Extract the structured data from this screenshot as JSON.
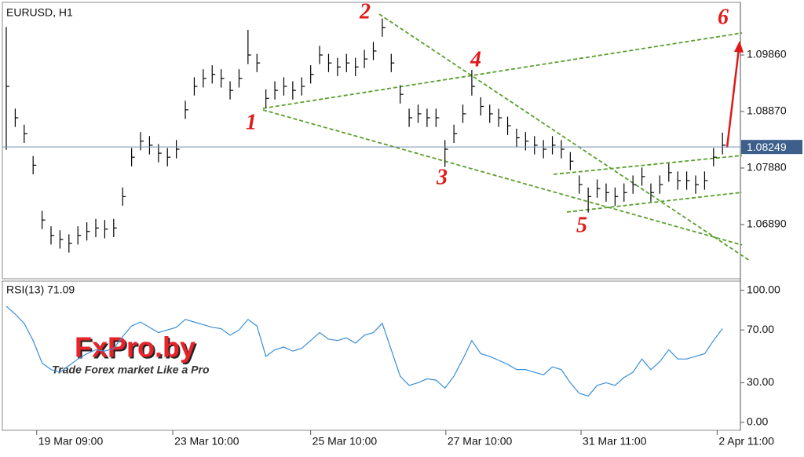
{
  "chart_data": [
    {
      "type": "ohlc",
      "title": "EURUSD, H1",
      "color": "#000000",
      "high": [
        1.1035,
        1.0892,
        1.0864,
        1.0809,
        1.0713,
        1.0686,
        1.0679,
        1.0672,
        1.0686,
        1.0693,
        1.0699,
        1.0697,
        1.0699,
        1.0754,
        1.0823,
        1.0851,
        1.0844,
        1.083,
        1.0823,
        1.0837,
        1.0906,
        1.0947,
        1.0961,
        1.0968,
        1.0961,
        1.094,
        1.0961,
        1.103,
        1.0988,
        1.0926,
        1.094,
        1.0947,
        1.094,
        1.0947,
        1.0968,
        1.1002,
        1.0988,
        1.0981,
        1.0988,
        1.0981,
        1.0995,
        1.1009,
        1.105,
        1.0988,
        1.0933,
        1.0892,
        1.0899,
        1.0892,
        1.0892,
        1.0837,
        1.0864,
        1.0899,
        1.096,
        1.0912,
        1.0899,
        1.0892,
        1.0878,
        1.0857,
        1.0851,
        1.0844,
        1.0837,
        1.0844,
        1.0837,
        1.0816,
        1.0775,
        1.0754,
        1.0768,
        1.0761,
        1.0754,
        1.0761,
        1.0775,
        1.0789,
        1.0761,
        1.0775,
        1.0796,
        1.0782,
        1.0782,
        1.0775,
        1.0782,
        1.0823,
        1.085
      ],
      "low": [
        1.082,
        1.086,
        1.0832,
        1.0777,
        1.0681,
        1.0654,
        1.0647,
        1.064,
        1.0654,
        1.0661,
        1.0667,
        1.0665,
        1.0667,
        1.0722,
        1.0791,
        1.0819,
        1.0812,
        1.0798,
        1.0791,
        1.0805,
        1.0874,
        1.0915,
        1.0929,
        1.0936,
        1.0929,
        1.0908,
        1.0929,
        1.097,
        1.0956,
        1.0894,
        1.0908,
        1.0915,
        1.0908,
        1.0915,
        1.0936,
        1.097,
        1.0956,
        1.0949,
        1.0956,
        1.0949,
        1.0963,
        1.0977,
        1.1018,
        1.0956,
        1.0901,
        1.086,
        1.0867,
        1.086,
        1.086,
        1.079,
        1.0832,
        1.0867,
        1.0915,
        1.088,
        1.0867,
        1.086,
        1.0846,
        1.0825,
        1.0819,
        1.0812,
        1.0805,
        1.0812,
        1.0805,
        1.0784,
        1.0743,
        1.071,
        1.0736,
        1.0729,
        1.0722,
        1.0729,
        1.0743,
        1.0757,
        1.0729,
        1.0743,
        1.0764,
        1.075,
        1.075,
        1.0743,
        1.075,
        1.0791,
        1.0812
      ],
      "close": [
        1.0931,
        1.0876,
        1.0848,
        1.0793,
        1.0697,
        1.067,
        1.0663,
        1.0656,
        1.067,
        1.0677,
        1.0683,
        1.0681,
        1.0683,
        1.0738,
        1.0807,
        1.0835,
        1.0828,
        1.0814,
        1.0807,
        1.0821,
        1.089,
        1.0931,
        1.0945,
        1.0952,
        1.0945,
        1.0924,
        1.0945,
        1.0986,
        1.0972,
        1.091,
        1.0924,
        1.0931,
        1.0924,
        1.0931,
        1.0952,
        1.0986,
        1.0972,
        1.0965,
        1.0972,
        1.0965,
        1.0979,
        1.0993,
        1.1034,
        1.0972,
        1.0917,
        1.0876,
        1.0883,
        1.0876,
        1.0876,
        1.0821,
        1.0848,
        1.0883,
        1.0931,
        1.0896,
        1.0883,
        1.0876,
        1.0862,
        1.0841,
        1.0835,
        1.0828,
        1.0821,
        1.0828,
        1.0821,
        1.08,
        1.0759,
        1.0738,
        1.0752,
        1.0745,
        1.0738,
        1.0745,
        1.0759,
        1.0773,
        1.0745,
        1.0759,
        1.078,
        1.0766,
        1.0766,
        1.0759,
        1.0766,
        1.0807,
        1.0828
      ],
      "xlim": [
        -0.7,
        82
      ],
      "xticks": [
        {
          "value": 3.4,
          "label": "19 Mar 09:00"
        },
        {
          "value": 18.6,
          "label": "23 Mar 10:00"
        },
        {
          "value": 34,
          "label": "25 Mar 10:00"
        },
        {
          "value": 49.1,
          "label": "27 Mar 10:00"
        },
        {
          "value": 64.2,
          "label": "31 Mar 11:00"
        },
        {
          "value": 79.4,
          "label": "2 Apr 11:00"
        }
      ],
      "ylim": [
        1.05941,
        1.10823
      ],
      "yticks": [
        {
          "value": 1.0986,
          "label": "1.09860"
        },
        {
          "value": 1.0887,
          "label": "1.08870"
        },
        {
          "value": 1.0788,
          "label": "1.07880"
        },
        {
          "value": 1.0689,
          "label": "1.06890"
        }
      ],
      "last_price": 1.08249,
      "wave_labels": [
        "1",
        "2",
        "3",
        "4",
        "5",
        "6"
      ],
      "watermark": "FxPro.by",
      "watermark_slogan": "Trade Forex market Like a Pro"
    },
    {
      "type": "line",
      "title": "RSI(13) 71.09",
      "color": "#3a8fd8",
      "values": [
        88,
        82,
        75,
        62,
        45,
        40,
        38,
        43,
        48,
        52,
        55,
        54,
        56,
        65,
        73,
        76,
        72,
        68,
        70,
        72,
        78,
        76,
        74,
        72,
        71,
        66,
        70,
        78,
        73,
        50,
        55,
        57,
        54,
        56,
        62,
        68,
        63,
        62,
        64,
        60,
        66,
        68,
        75,
        55,
        35,
        28,
        30,
        33,
        32,
        26,
        35,
        48,
        62,
        52,
        50,
        47,
        44,
        40,
        40,
        38,
        36,
        42,
        40,
        30,
        22,
        20,
        28,
        30,
        28,
        34,
        38,
        48,
        40,
        46,
        55,
        48,
        48,
        50,
        52,
        62,
        71.09
      ],
      "ylim": [
        -6,
        107
      ],
      "yticks": [
        {
          "value": 100,
          "label": "100.00"
        },
        {
          "value": 70,
          "label": "70.00"
        },
        {
          "value": 30,
          "label": "30.00"
        },
        {
          "value": 0,
          "label": "0.00"
        }
      ]
    }
  ]
}
